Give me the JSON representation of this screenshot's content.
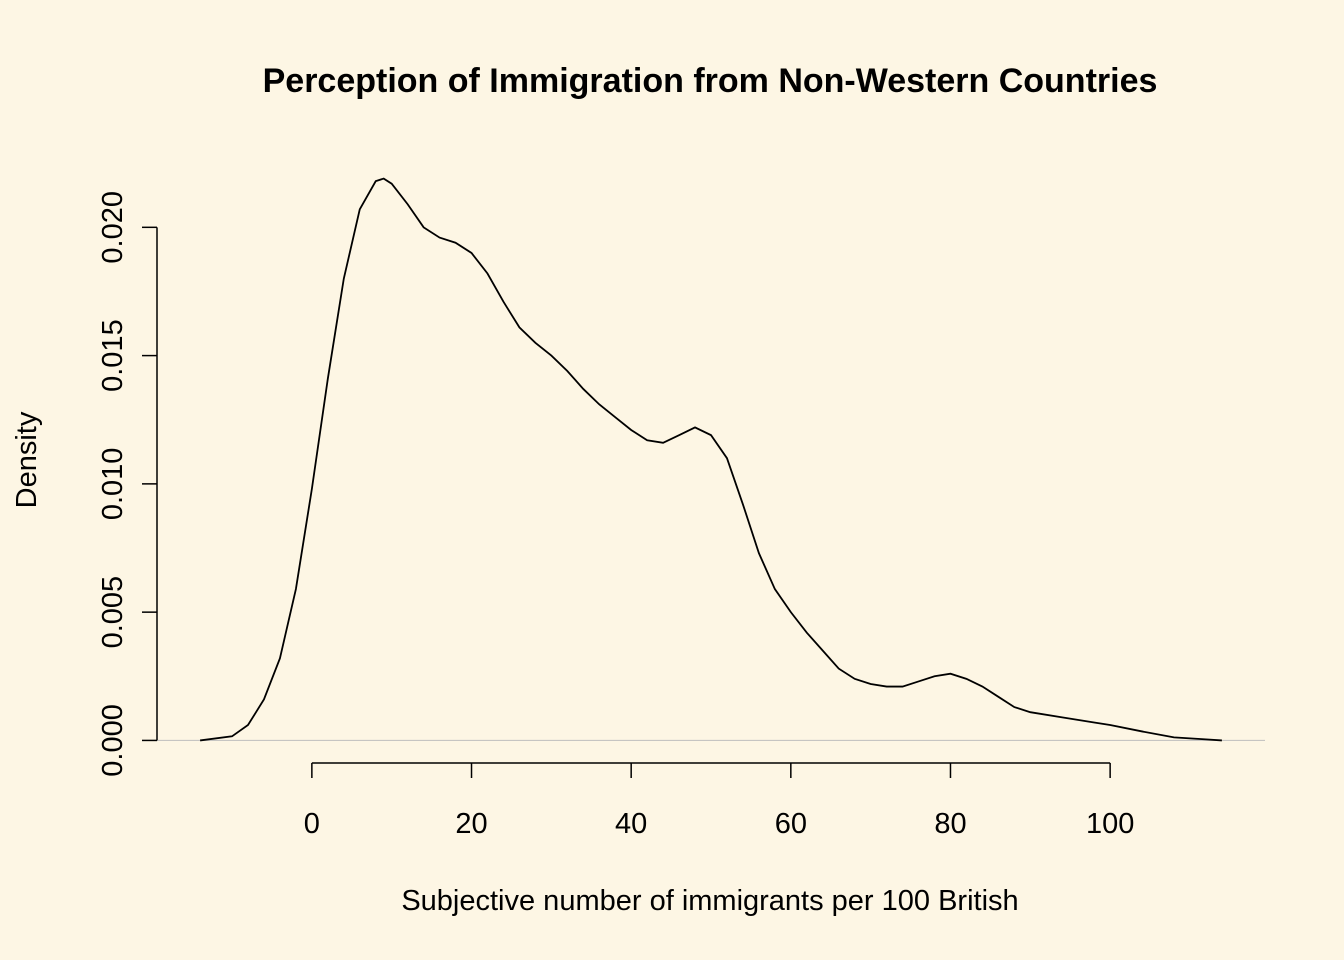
{
  "chart_data": {
    "type": "line",
    "title": "Perception of Immigration from Non-Western Countries",
    "xlabel": "Subjective number of immigrants per 100 British",
    "ylabel": "Density",
    "x": [
      -14,
      -10,
      -8,
      -6,
      -4,
      -2,
      0,
      2,
      4,
      6,
      8,
      9,
      10,
      12,
      14,
      16,
      18,
      20,
      22,
      24,
      26,
      28,
      30,
      32,
      34,
      36,
      38,
      40,
      42,
      44,
      46,
      48,
      50,
      52,
      54,
      56,
      58,
      60,
      62,
      64,
      66,
      68,
      70,
      72,
      74,
      76,
      78,
      80,
      82,
      84,
      86,
      88,
      90,
      94,
      98,
      100,
      104,
      108,
      112,
      114
    ],
    "series": [
      {
        "name": "density",
        "color": "#000000",
        "values": [
          0,
          0.00016,
          0.0006,
          0.0016,
          0.0032,
          0.0059,
          0.0098,
          0.0141,
          0.018,
          0.0207,
          0.0218,
          0.0219,
          0.0217,
          0.0209,
          0.02,
          0.0196,
          0.0194,
          0.019,
          0.0182,
          0.0171,
          0.0161,
          0.0155,
          0.015,
          0.0144,
          0.0137,
          0.0131,
          0.0126,
          0.0121,
          0.0117,
          0.0116,
          0.0119,
          0.0122,
          0.0119,
          0.011,
          0.0092,
          0.0073,
          0.0059,
          0.005,
          0.0042,
          0.0035,
          0.0028,
          0.0024,
          0.0022,
          0.0021,
          0.0021,
          0.0023,
          0.0025,
          0.0026,
          0.0024,
          0.0021,
          0.0017,
          0.0013,
          0.0011,
          0.0009,
          0.0007,
          0.0006,
          0.00035,
          0.00012,
          4e-05,
          0
        ]
      }
    ],
    "xlim": [
      -19.4,
      119.4
    ],
    "ylim": [
      -0.00088,
      0.02278
    ],
    "xticks": [
      0,
      20,
      40,
      60,
      80,
      100
    ],
    "yticks": [
      {
        "value": 0,
        "label": "0.000"
      },
      {
        "value": 0.005,
        "label": "0.005"
      },
      {
        "value": 0.01,
        "label": "0.010"
      },
      {
        "value": 0.015,
        "label": "0.015"
      },
      {
        "value": 0.02,
        "label": "0.020"
      }
    ]
  }
}
